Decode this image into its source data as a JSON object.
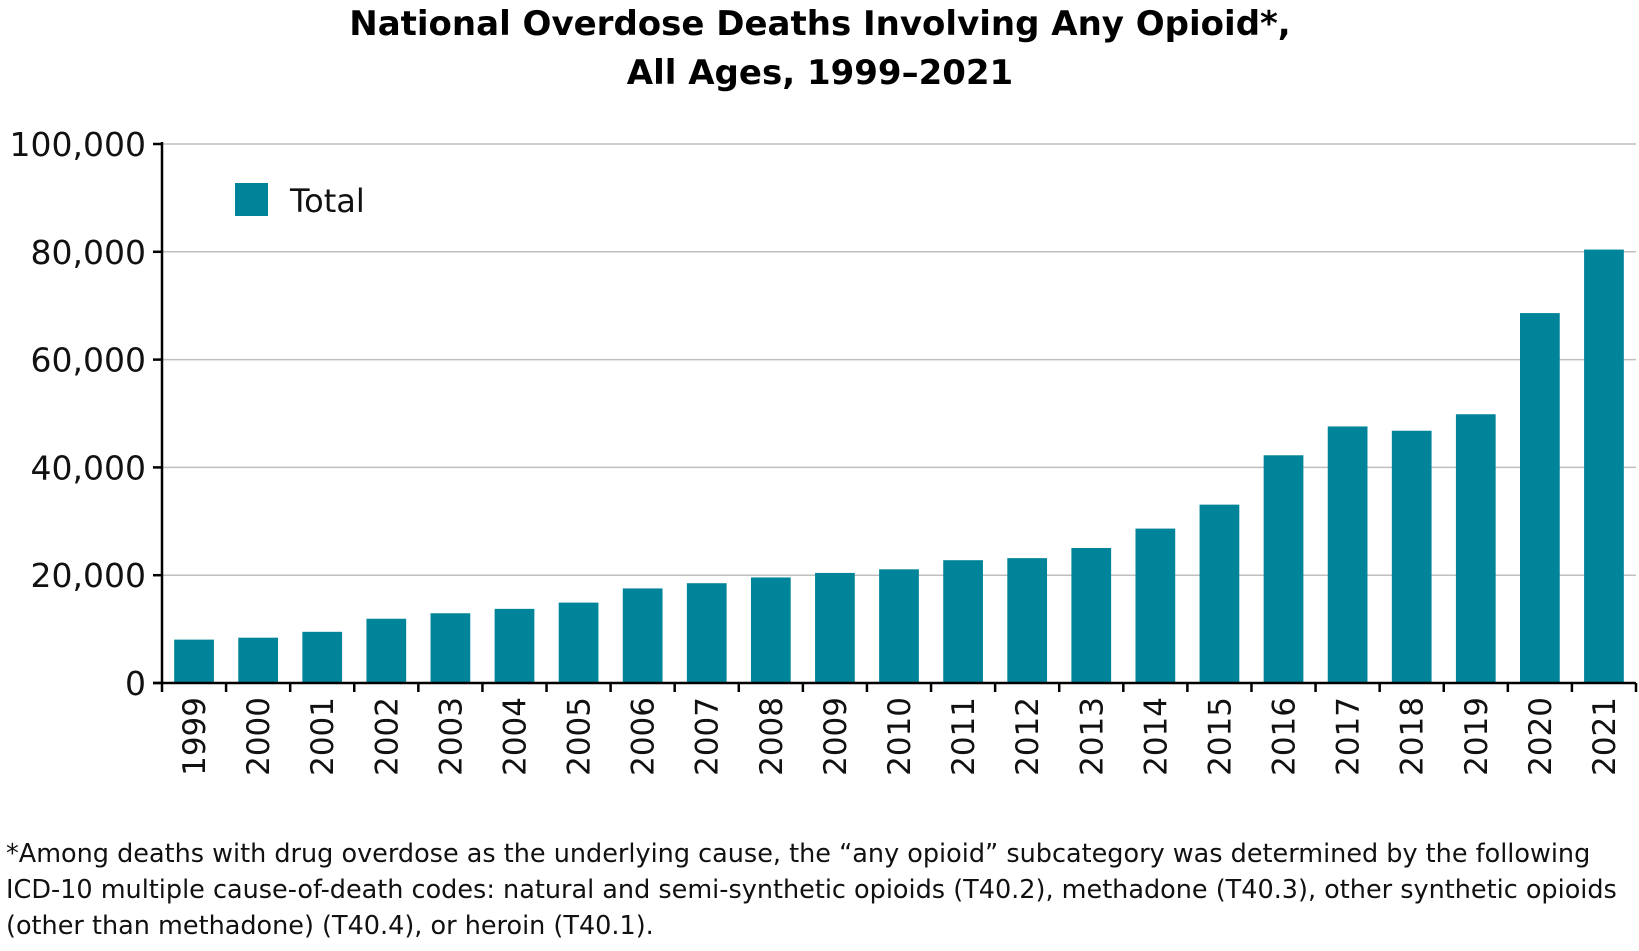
{
  "chart_data": {
    "type": "bar",
    "title_lines": [
      "National Overdose Deaths Involving Any Opioid*,",
      "All Ages, 1999–2021"
    ],
    "xlabel": "",
    "ylabel": "",
    "categories": [
      "1999",
      "2000",
      "2001",
      "2002",
      "2003",
      "2004",
      "2005",
      "2006",
      "2007",
      "2008",
      "2009",
      "2010",
      "2011",
      "2012",
      "2013",
      "2014",
      "2015",
      "2016",
      "2017",
      "2018",
      "2019",
      "2020",
      "2021"
    ],
    "series": [
      {
        "name": "Total",
        "color": "#00849A",
        "values": [
          8050,
          8407,
          9496,
          11920,
          12940,
          13756,
          14918,
          17545,
          18515,
          19582,
          20422,
          21089,
          22784,
          23166,
          25052,
          28647,
          33091,
          42249,
          47600,
          46802,
          49860,
          68630,
          80411
        ]
      }
    ],
    "ylim": [
      0,
      100000
    ],
    "yticks": [
      0,
      20000,
      40000,
      60000,
      80000,
      100000
    ],
    "ytick_labels": [
      "0",
      "20,000",
      "40,000",
      "60,000",
      "80,000",
      "100,000"
    ],
    "grid": "horizontal",
    "legend_position": "top-left",
    "footnote": "*Among deaths with drug overdose as the underlying cause, the “any opioid”  subcategory was determined by the following ICD-10 multiple cause-of-death codes: natural and semi-synthetic opioids (T40.2), methadone (T40.3), other synthetic opioids (other than methadone) (T40.4), or heroin (T40.1)."
  },
  "colors": {
    "bar": "#00849A",
    "grid": "#BFBFBF",
    "axis": "#000000"
  }
}
